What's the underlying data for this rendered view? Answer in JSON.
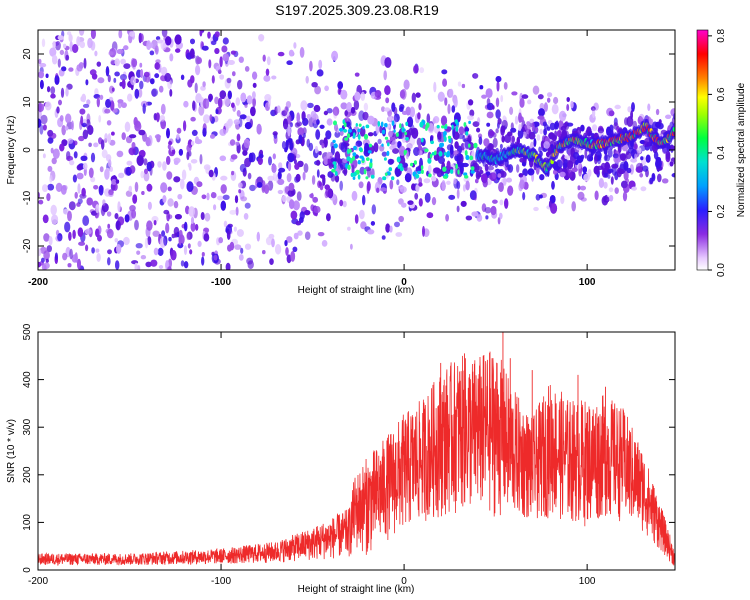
{
  "title": "S197.2025.309.23.08.R19",
  "colors": {
    "snr_line": "#ee2a2a",
    "frame": "#000000",
    "speckle": "#7a1fe0"
  },
  "chart_data": [
    {
      "type": "heatmap",
      "name": "spectrogram",
      "xlabel": "Height of straight line (km)",
      "ylabel": "Frequency (Hz)",
      "xlim": [
        -200,
        148
      ],
      "ylim": [
        -25,
        25
      ],
      "xticks": [
        -200,
        -100,
        0,
        100
      ],
      "yticks": [
        -20,
        -10,
        0,
        10,
        20
      ],
      "colorbar": {
        "label": "Normalized spectral amplitude",
        "range": [
          0.0,
          0.82
        ],
        "ticks": [
          0.0,
          0.2,
          0.4,
          0.6,
          0.8
        ],
        "colormap": "rainbow (white-violet-blue-cyan-green-yellow-red-magenta)"
      },
      "ridge": {
        "description": "Coherent Doppler trace visible from ~40 km to 148 km",
        "points": [
          {
            "x": 40,
            "freq": -1
          },
          {
            "x": 50,
            "freq": -2
          },
          {
            "x": 60,
            "freq": 0
          },
          {
            "x": 70,
            "freq": -1
          },
          {
            "x": 78,
            "freq": -4
          },
          {
            "x": 85,
            "freq": 1
          },
          {
            "x": 95,
            "freq": 2
          },
          {
            "x": 105,
            "freq": 1
          },
          {
            "x": 115,
            "freq": 2
          },
          {
            "x": 125,
            "freq": 3
          },
          {
            "x": 132,
            "freq": 5
          },
          {
            "x": 140,
            "freq": 1
          },
          {
            "x": 148,
            "freq": 4
          }
        ]
      }
    },
    {
      "type": "line",
      "name": "snr",
      "xlabel": "Height of straight line (km)",
      "ylabel": "SNR (10 * v/v)",
      "xlim": [
        -200,
        148
      ],
      "ylim": [
        0,
        500
      ],
      "xticks": [
        -200,
        -100,
        0,
        100
      ],
      "yticks": [
        0,
        100,
        200,
        300,
        400,
        500
      ],
      "envelope": {
        "x": [
          -200,
          -150,
          -100,
          -70,
          -50,
          -30,
          -27,
          -20,
          -10,
          0,
          10,
          20,
          30,
          40,
          50,
          60,
          70,
          80,
          90,
          100,
          110,
          120,
          130,
          140,
          148
        ],
        "upper": [
          35,
          35,
          45,
          60,
          90,
          130,
          200,
          240,
          280,
          330,
          360,
          420,
          450,
          450,
          470,
          380,
          320,
          400,
          360,
          360,
          370,
          340,
          260,
          140,
          40
        ],
        "lower": [
          10,
          10,
          12,
          15,
          20,
          25,
          40,
          30,
          60,
          80,
          100,
          110,
          120,
          120,
          110,
          110,
          100,
          110,
          100,
          90,
          110,
          100,
          80,
          40,
          5
        ],
        "mean": [
          22,
          22,
          28,
          35,
          45,
          60,
          110,
          130,
          160,
          180,
          190,
          210,
          240,
          240,
          250,
          230,
          220,
          230,
          220,
          210,
          220,
          200,
          180,
          100,
          20
        ]
      },
      "peaks": [
        {
          "x": 20,
          "y": 435
        },
        {
          "x": 33,
          "y": 455
        },
        {
          "x": 54,
          "y": 500
        },
        {
          "x": 58,
          "y": 445
        },
        {
          "x": 70,
          "y": 420
        },
        {
          "x": 95,
          "y": 410
        },
        {
          "x": 110,
          "y": 385
        }
      ]
    }
  ]
}
